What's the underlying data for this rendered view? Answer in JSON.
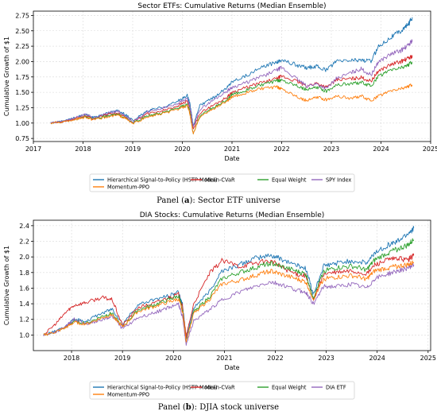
{
  "panels": [
    {
      "caption": {
        "prefix": "Panel (",
        "letter": "a",
        "suffix": "): Sector ETF universe"
      },
      "chart_data": {
        "type": "line",
        "title": "Sector ETFs: Cumulative Returns (Median Ensemble)",
        "xlabel": "Date",
        "ylabel": "Cumulative Growth of $1",
        "xlim": [
          2017.0,
          2025.0
        ],
        "ylim": [
          0.7,
          2.82
        ],
        "xticks": [
          2017,
          2018,
          2019,
          2020,
          2021,
          2022,
          2023,
          2024,
          2025
        ],
        "yticks": [
          0.75,
          1.0,
          1.25,
          1.5,
          1.75,
          2.0,
          2.25,
          2.5,
          2.75
        ],
        "ytick_decimals": 2,
        "grid": true,
        "legend_placement": "below",
        "series": [
          {
            "name": "Hierarchical Signal-to-Policy (HSTP Model)",
            "color": "#1f77b4",
            "x": [
              2017.35,
              2017.6,
              2017.9,
              2018.05,
              2018.2,
              2018.5,
              2018.7,
              2018.85,
              2019.0,
              2019.3,
              2019.6,
              2019.9,
              2020.1,
              2020.15,
              2020.22,
              2020.35,
              2020.6,
              2020.9,
              2021.0,
              2021.3,
              2021.6,
              2021.9,
              2022.0,
              2022.3,
              2022.5,
              2022.7,
              2022.9,
              2023.1,
              2023.4,
              2023.6,
              2023.8,
              2023.95,
              2024.2,
              2024.4,
              2024.55,
              2024.63
            ],
            "y": [
              1.0,
              1.03,
              1.1,
              1.14,
              1.09,
              1.16,
              1.2,
              1.14,
              1.04,
              1.2,
              1.26,
              1.35,
              1.45,
              1.32,
              0.96,
              1.28,
              1.4,
              1.58,
              1.68,
              1.78,
              1.9,
              2.0,
              2.03,
              1.94,
              1.9,
              1.92,
              1.86,
              2.0,
              2.02,
              2.03,
              2.0,
              2.25,
              2.4,
              2.5,
              2.6,
              2.72
            ]
          },
          {
            "name": "Mean-CVaR",
            "color": "#d62728",
            "x": [
              2017.35,
              2017.6,
              2017.9,
              2018.05,
              2018.2,
              2018.5,
              2018.7,
              2018.85,
              2019.0,
              2019.3,
              2019.6,
              2019.9,
              2020.1,
              2020.15,
              2020.22,
              2020.35,
              2020.6,
              2020.9,
              2021.0,
              2021.3,
              2021.6,
              2021.9,
              2022.0,
              2022.3,
              2022.5,
              2022.7,
              2022.9,
              2023.1,
              2023.4,
              2023.6,
              2023.8,
              2023.95,
              2024.2,
              2024.4,
              2024.55,
              2024.63
            ],
            "y": [
              1.0,
              1.02,
              1.08,
              1.12,
              1.07,
              1.14,
              1.16,
              1.11,
              1.02,
              1.15,
              1.2,
              1.28,
              1.36,
              1.24,
              0.9,
              1.16,
              1.28,
              1.42,
              1.5,
              1.58,
              1.66,
              1.72,
              1.76,
              1.68,
              1.6,
              1.65,
              1.58,
              1.7,
              1.72,
              1.74,
              1.68,
              1.85,
              1.95,
              2.0,
              2.05,
              2.09
            ]
          },
          {
            "name": "Equal Weight",
            "color": "#2ca02c",
            "x": [
              2017.35,
              2017.6,
              2017.9,
              2018.05,
              2018.2,
              2018.5,
              2018.7,
              2018.85,
              2019.0,
              2019.3,
              2019.6,
              2019.9,
              2020.1,
              2020.15,
              2020.22,
              2020.35,
              2020.6,
              2020.9,
              2021.0,
              2021.3,
              2021.6,
              2021.9,
              2022.0,
              2022.3,
              2022.5,
              2022.7,
              2022.9,
              2023.1,
              2023.4,
              2023.6,
              2023.8,
              2023.95,
              2024.2,
              2024.4,
              2024.55,
              2024.63
            ],
            "y": [
              1.0,
              1.02,
              1.07,
              1.11,
              1.06,
              1.12,
              1.14,
              1.09,
              1.0,
              1.12,
              1.16,
              1.24,
              1.3,
              1.18,
              0.82,
              1.12,
              1.24,
              1.38,
              1.46,
              1.54,
              1.62,
              1.68,
              1.7,
              1.62,
              1.54,
              1.58,
              1.52,
              1.62,
              1.64,
              1.66,
              1.6,
              1.76,
              1.86,
              1.9,
              1.95,
              1.99
            ]
          },
          {
            "name": "SPY Index",
            "color": "#9467bd",
            "x": [
              2017.35,
              2017.6,
              2017.9,
              2018.05,
              2018.2,
              2018.5,
              2018.7,
              2018.85,
              2019.0,
              2019.3,
              2019.6,
              2019.9,
              2020.1,
              2020.15,
              2020.22,
              2020.35,
              2020.6,
              2020.9,
              2021.0,
              2021.3,
              2021.6,
              2021.9,
              2022.0,
              2022.3,
              2022.5,
              2022.7,
              2022.9,
              2023.1,
              2023.4,
              2023.6,
              2023.8,
              2023.95,
              2024.2,
              2024.4,
              2024.55,
              2024.63
            ],
            "y": [
              1.0,
              1.03,
              1.1,
              1.15,
              1.08,
              1.16,
              1.2,
              1.12,
              1.02,
              1.18,
              1.24,
              1.32,
              1.4,
              1.26,
              0.94,
              1.22,
              1.36,
              1.52,
              1.58,
              1.66,
              1.76,
              1.86,
              1.9,
              1.72,
              1.6,
              1.64,
              1.56,
              1.72,
              1.82,
              1.88,
              1.78,
              2.0,
              2.12,
              2.18,
              2.26,
              2.35
            ]
          },
          {
            "name": "Momentum-PPO",
            "color": "#ff7f0e",
            "x": [
              2017.35,
              2017.6,
              2017.9,
              2018.05,
              2018.2,
              2018.5,
              2018.7,
              2018.85,
              2019.0,
              2019.3,
              2019.6,
              2019.9,
              2020.1,
              2020.15,
              2020.22,
              2020.35,
              2020.6,
              2020.9,
              2021.0,
              2021.3,
              2021.6,
              2021.9,
              2022.0,
              2022.3,
              2022.5,
              2022.7,
              2022.9,
              2023.1,
              2023.4,
              2023.6,
              2023.8,
              2023.95,
              2024.2,
              2024.4,
              2024.55,
              2024.63
            ],
            "y": [
              1.0,
              1.02,
              1.07,
              1.1,
              1.05,
              1.1,
              1.13,
              1.08,
              0.99,
              1.1,
              1.15,
              1.22,
              1.28,
              1.15,
              0.82,
              1.1,
              1.22,
              1.36,
              1.42,
              1.5,
              1.56,
              1.58,
              1.56,
              1.44,
              1.36,
              1.42,
              1.38,
              1.44,
              1.4,
              1.44,
              1.36,
              1.44,
              1.52,
              1.56,
              1.6,
              1.62
            ]
          }
        ]
      }
    },
    {
      "caption": {
        "prefix": "Panel (",
        "letter": "b",
        "suffix": "): DJIA stock universe"
      },
      "chart_data": {
        "type": "line",
        "title": "DIA Stocks: Cumulative Returns (Median Ensemble)",
        "xlabel": "Date",
        "ylabel": "Cumulative Growth of $1",
        "xlim": [
          2017.25,
          2025.05
        ],
        "ylim": [
          0.8,
          2.47
        ],
        "xticks": [
          2018,
          2019,
          2020,
          2021,
          2022,
          2023,
          2024,
          2025
        ],
        "yticks": [
          1.0,
          1.2,
          1.4,
          1.6,
          1.8,
          2.0,
          2.2,
          2.4
        ],
        "ytick_decimals": 1,
        "grid": true,
        "legend_placement": "below",
        "series": [
          {
            "name": "Hierarchical Signal-to-Policy (HSTP Model)",
            "color": "#1f77b4",
            "x": [
              2017.45,
              2017.7,
              2017.9,
              2018.05,
              2018.3,
              2018.6,
              2018.8,
              2019.0,
              2019.3,
              2019.6,
              2019.9,
              2020.1,
              2020.18,
              2020.25,
              2020.4,
              2020.7,
              2020.95,
              2021.3,
              2021.6,
              2021.9,
              2022.1,
              2022.4,
              2022.6,
              2022.75,
              2022.95,
              2023.2,
              2023.5,
              2023.8,
              2023.95,
              2024.2,
              2024.4,
              2024.6,
              2024.72
            ],
            "y": [
              1.0,
              1.05,
              1.12,
              1.2,
              1.18,
              1.28,
              1.33,
              1.14,
              1.38,
              1.45,
              1.5,
              1.55,
              1.38,
              0.95,
              1.35,
              1.55,
              1.82,
              1.9,
              1.98,
              2.02,
              1.98,
              1.9,
              1.85,
              1.52,
              1.88,
              1.92,
              1.95,
              1.92,
              2.05,
              2.15,
              2.2,
              2.3,
              2.37
            ]
          },
          {
            "name": "Mean-CVaR",
            "color": "#d62728",
            "x": [
              2017.45,
              2017.7,
              2017.9,
              2018.05,
              2018.3,
              2018.6,
              2018.8,
              2019.0,
              2019.3,
              2019.6,
              2019.9,
              2020.1,
              2020.18,
              2020.25,
              2020.4,
              2020.7,
              2020.95,
              2021.3,
              2021.6,
              2021.9,
              2022.1,
              2022.4,
              2022.6,
              2022.75,
              2022.95,
              2023.2,
              2023.5,
              2023.8,
              2023.95,
              2024.2,
              2024.4,
              2024.6,
              2024.72
            ],
            "y": [
              1.0,
              1.15,
              1.3,
              1.38,
              1.42,
              1.48,
              1.45,
              1.12,
              1.35,
              1.4,
              1.48,
              1.52,
              1.35,
              0.98,
              1.4,
              1.78,
              1.95,
              1.88,
              1.92,
              1.95,
              1.88,
              1.78,
              1.76,
              1.45,
              1.78,
              1.8,
              1.82,
              1.78,
              1.9,
              1.96,
              1.98,
              1.96,
              2.02
            ]
          },
          {
            "name": "Equal Weight",
            "color": "#2ca02c",
            "x": [
              2017.45,
              2017.7,
              2017.9,
              2018.05,
              2018.3,
              2018.6,
              2018.8,
              2019.0,
              2019.3,
              2019.6,
              2019.9,
              2020.1,
              2020.18,
              2020.25,
              2020.4,
              2020.7,
              2020.95,
              2021.3,
              2021.6,
              2021.9,
              2022.1,
              2022.4,
              2022.6,
              2022.75,
              2022.95,
              2023.2,
              2023.5,
              2023.8,
              2023.95,
              2024.2,
              2024.4,
              2024.6,
              2024.72
            ],
            "y": [
              1.0,
              1.04,
              1.1,
              1.18,
              1.15,
              1.24,
              1.28,
              1.1,
              1.32,
              1.38,
              1.45,
              1.5,
              1.32,
              0.92,
              1.3,
              1.48,
              1.72,
              1.8,
              1.86,
              1.92,
              1.88,
              1.82,
              1.78,
              1.48,
              1.82,
              1.86,
              1.88,
              1.84,
              1.96,
              2.05,
              2.1,
              2.15,
              2.22
            ]
          },
          {
            "name": "DIA ETF",
            "color": "#9467bd",
            "x": [
              2017.45,
              2017.7,
              2017.9,
              2018.05,
              2018.3,
              2018.6,
              2018.8,
              2019.0,
              2019.3,
              2019.6,
              2019.9,
              2020.1,
              2020.18,
              2020.25,
              2020.4,
              2020.7,
              2020.95,
              2021.3,
              2021.6,
              2021.9,
              2022.1,
              2022.4,
              2022.6,
              2022.75,
              2022.95,
              2023.2,
              2023.5,
              2023.8,
              2023.95,
              2024.2,
              2024.4,
              2024.6,
              2024.72
            ],
            "y": [
              1.0,
              1.04,
              1.12,
              1.2,
              1.14,
              1.2,
              1.24,
              1.08,
              1.22,
              1.28,
              1.35,
              1.4,
              1.22,
              0.88,
              1.18,
              1.32,
              1.45,
              1.55,
              1.62,
              1.68,
              1.65,
              1.58,
              1.55,
              1.4,
              1.62,
              1.62,
              1.65,
              1.6,
              1.72,
              1.78,
              1.82,
              1.86,
              1.9
            ]
          },
          {
            "name": "Momentum-PPO",
            "color": "#ff7f0e",
            "x": [
              2017.45,
              2017.7,
              2017.9,
              2018.05,
              2018.3,
              2018.6,
              2018.8,
              2019.0,
              2019.3,
              2019.6,
              2019.9,
              2020.1,
              2020.18,
              2020.25,
              2020.4,
              2020.7,
              2020.95,
              2021.3,
              2021.6,
              2021.9,
              2022.1,
              2022.4,
              2022.6,
              2022.75,
              2022.95,
              2023.2,
              2023.5,
              2023.8,
              2023.95,
              2024.2,
              2024.4,
              2024.6,
              2024.72
            ],
            "y": [
              1.0,
              1.04,
              1.1,
              1.16,
              1.14,
              1.22,
              1.26,
              1.1,
              1.3,
              1.36,
              1.42,
              1.46,
              1.3,
              0.92,
              1.28,
              1.45,
              1.65,
              1.7,
              1.76,
              1.82,
              1.78,
              1.72,
              1.68,
              1.46,
              1.72,
              1.74,
              1.76,
              1.72,
              1.82,
              1.86,
              1.88,
              1.9,
              1.93
            ]
          }
        ]
      }
    }
  ]
}
